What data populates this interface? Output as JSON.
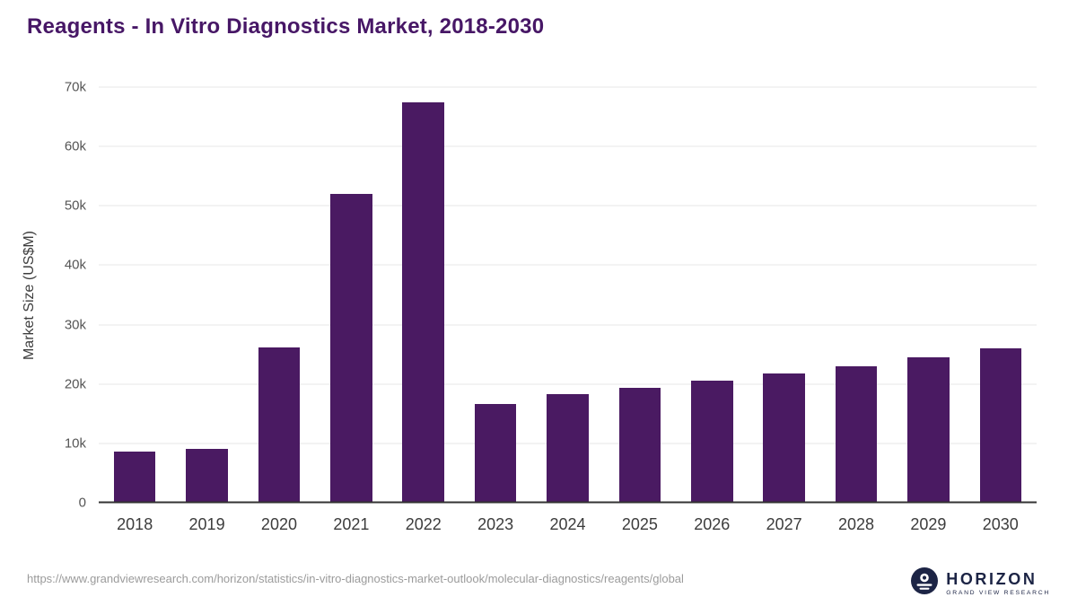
{
  "title": "Reagents - In Vitro Diagnostics Market, 2018-2030",
  "colors": {
    "bar": "#4a1a62",
    "title": "#471766",
    "axis": "#333333",
    "gridline": "#e7e7e7",
    "tick": "#555555",
    "footer_text": "#9b9b9b",
    "logo_navy": "#1c2445"
  },
  "chart_data": {
    "type": "bar",
    "title": "Reagents - In Vitro Diagnostics Market, 2018-2030",
    "categories": [
      "2018",
      "2019",
      "2020",
      "2021",
      "2022",
      "2023",
      "2024",
      "2025",
      "2026",
      "2027",
      "2028",
      "2029",
      "2030"
    ],
    "values": [
      8600,
      9000,
      26200,
      52000,
      67500,
      16600,
      18300,
      19400,
      20600,
      21800,
      23000,
      24500,
      26000
    ],
    "xlabel": "",
    "ylabel": "Market Size (US$M)",
    "ylim": [
      0,
      70000
    ],
    "yticks": [
      "0",
      "10k",
      "20k",
      "30k",
      "40k",
      "50k",
      "60k",
      "70k"
    ],
    "grid": true,
    "legend": "none"
  },
  "footer": {
    "source_url": "https://www.grandviewresearch.com/horizon/statistics/in-vitro-diagnostics-market-outlook/molecular-diagnostics/reagents/global",
    "logo_text": "HORIZON",
    "logo_subtext": "GRAND VIEW RESEARCH"
  }
}
